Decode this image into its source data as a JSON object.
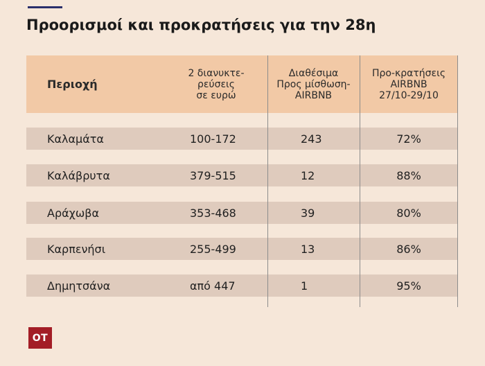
{
  "title": "Προορισμοί και προκρατήσεις για την 28η",
  "table": {
    "headers": [
      "Περιοχή",
      "2 διανυκτε-\nρεύσεις\nσε ευρώ",
      "Διαθέσιμα\nΠρος μίσθωση-\nAIRBNB",
      "Προ-κρατήσεις\nAIRBNB\n27/10-29/10"
    ],
    "rows": [
      [
        "Καλαμάτα",
        "100-172",
        "243",
        "72%"
      ],
      [
        "Καλάβρυτα",
        "379-515",
        "12",
        "88%"
      ],
      [
        "Αράχωβα",
        "353-468",
        "39",
        "80%"
      ],
      [
        "Καρπενήσι",
        "255-499",
        "13",
        "86%"
      ],
      [
        "Δημητσάνα",
        "από 447",
        "1",
        "95%"
      ]
    ]
  },
  "logo": {
    "text": "OT"
  },
  "colors": {
    "background": "#f6e7d9",
    "header": "#f2c9a6",
    "row": "#dfcbbd",
    "logo": "#a31d26",
    "accent_rule": "#2a2f6b"
  }
}
